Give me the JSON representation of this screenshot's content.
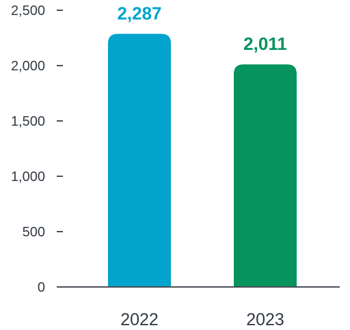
{
  "chart_data": {
    "type": "bar",
    "categories": [
      "2022",
      "2023"
    ],
    "values": [
      2287,
      2011
    ],
    "value_labels": [
      "2,287",
      "2,011"
    ],
    "colors": [
      "#02A3CC",
      "#07935E"
    ],
    "ylim": [
      0,
      2500
    ],
    "yticks": [
      0,
      500,
      1000,
      1500,
      2000,
      2500
    ],
    "ytick_labels": [
      "0",
      "500",
      "1,000",
      "1,500",
      "2,000",
      "2,500"
    ],
    "grid": false,
    "title": "",
    "xlabel": "",
    "ylabel": "",
    "axis_color": "#4a4f57"
  }
}
